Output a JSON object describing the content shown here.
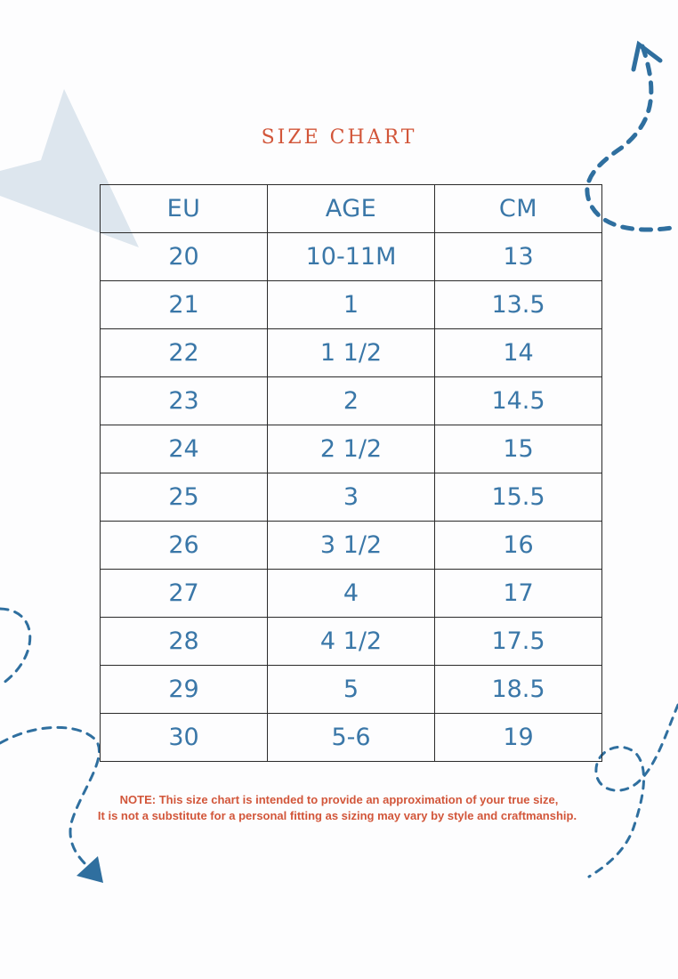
{
  "title": "SIZE CHART",
  "table": {
    "headers": [
      "EU",
      "AGE",
      "CM"
    ],
    "rows": [
      [
        "20",
        "10-11M",
        "13"
      ],
      [
        "21",
        "1",
        "13.5"
      ],
      [
        "22",
        "1 1/2",
        "14"
      ],
      [
        "23",
        "2",
        "14.5"
      ],
      [
        "24",
        "2 1/2",
        "15"
      ],
      [
        "25",
        "3",
        "15.5"
      ],
      [
        "26",
        "3 1/2",
        "16"
      ],
      [
        "27",
        "4",
        "17"
      ],
      [
        "28",
        "4 1/2",
        "17.5"
      ],
      [
        "29",
        "5",
        "18.5"
      ],
      [
        "30",
        "5-6",
        "19"
      ]
    ]
  },
  "note": {
    "line1": "NOTE: This size chart is intended to provide an approximation of your true size,",
    "line2": "It is not a substitute for a personal fitting as sizing may vary by style and craftmanship."
  },
  "colors": {
    "title": "#d2563a",
    "table_text": "#3a77a8",
    "decoration_blue": "#2f6f9f",
    "decoration_light": "#dde6ee"
  },
  "icons": [
    "paper-plane-shape",
    "dashed-arrow-top-right",
    "dashed-arrow-bottom-left",
    "dashed-loop-bottom-right"
  ]
}
